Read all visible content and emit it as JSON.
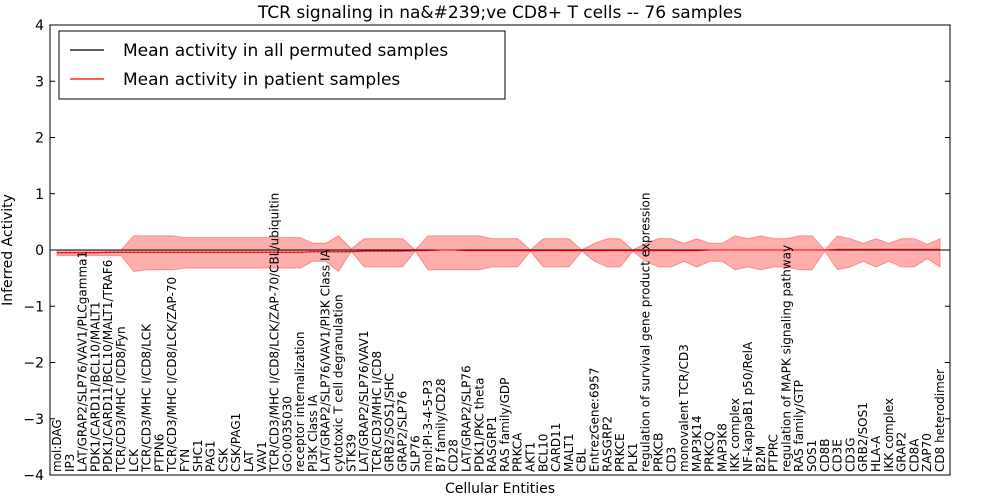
{
  "chart_data": {
    "type": "line",
    "title": "TCR signaling in na&#239;ve CD8+ T cells -- 76 samples",
    "xlabel": "Cellular Entities",
    "ylabel": "Inferred Activity",
    "ylim": [
      -4,
      4
    ],
    "yticks": [
      -4,
      -3,
      -2,
      -1,
      0,
      1,
      2,
      3,
      4
    ],
    "ytick_labels": [
      "−4",
      "−3",
      "−2",
      "−1",
      "0",
      "1",
      "2",
      "3",
      "4"
    ],
    "legend": {
      "position": "top-left",
      "entries": [
        {
          "label": "Mean activity in all permuted samples",
          "color": "#000000"
        },
        {
          "label": "Mean activity in patient samples",
          "color": "#ff0000"
        }
      ]
    },
    "band_color": "#ff6b6b",
    "entities": [
      "mol:DAG",
      "IP3",
      "LAT/GRAP2/SLP76/VAV1/PLCgamma1",
      "PDK1/CARD11/BCL10/MALT1",
      "PDK1/CARD11/BCL10/MALT1/TRAF6",
      "TCR/CD3/MHC I/CD8/Fyn",
      "LCK",
      "TCR/CD3/MHC I/CD8/LCK",
      "PTPN6",
      "TCR/CD3/MHC I/CD8/LCK/ZAP-70",
      "FYN",
      "SHC1",
      "PAG1",
      "CSK",
      "CSK/PAG1",
      "LAT",
      "VAV1",
      "TCR/CD3/MHC I/CD8/LCK/ZAP-70/CBL/ubiquitin",
      "GO:0035030",
      "receptor internalization",
      "PI3K Class IA",
      "LAT/GRAP2/SLP76/VAV1/PI3K Class IA",
      "cytotoxic T cell degranulation",
      "STK39",
      "LAT/GRAP2/SLP76/VAV1",
      "TCR/CD3/MHC I/CD8",
      "GRB2/SOS1/SHC",
      "GRAP2/SLP76",
      "SLP76",
      "mol:PI-3-4-5-P3",
      "B7 family/CD28",
      "CD28",
      "LAT/GRAP2/SLP76",
      "PDK1/PKC theta",
      "RASGRP1",
      "RAS family/GDP",
      "PRKCA",
      "AKT1",
      "BCL10",
      "CARD11",
      "MALT1",
      "CBL",
      "EntrezGene:6957",
      "RASGRP2",
      "PRKCE",
      "PLK1",
      "regulation of survival gene product expression",
      "PRKCB",
      "CD3",
      "monovalent TCR/CD3",
      "MAP3K14",
      "PRKCQ",
      "MAP3K8",
      "IKK complex",
      "NF-kappaB1 p50/RelA",
      "B2M",
      "PTPRC",
      "regulation of MAPK signaling pathway",
      "RAS family/GTP",
      "SOS1",
      "CD8B",
      "CD3E",
      "CD3G",
      "GRB2/SOS1",
      "HLA-A",
      "IKK complex",
      "GRAP2",
      "CD8A",
      "ZAP70",
      "CD8 heterodimer"
    ],
    "series": [
      {
        "name": "Mean activity in all permuted samples",
        "color": "#000000",
        "values": [
          -0.05,
          -0.05,
          -0.05,
          -0.05,
          -0.04,
          -0.04,
          -0.04,
          -0.04,
          -0.04,
          -0.04,
          -0.04,
          -0.04,
          -0.04,
          -0.04,
          -0.04,
          -0.04,
          -0.04,
          -0.04,
          -0.04,
          -0.04,
          -0.03,
          -0.03,
          -0.03,
          -0.03,
          -0.02,
          -0.02,
          -0.02,
          -0.02,
          -0.01,
          -0.01,
          0.0,
          0.0,
          -0.01,
          -0.01,
          -0.01,
          -0.01,
          -0.01,
          -0.01,
          -0.01,
          -0.01,
          -0.01,
          -0.01,
          -0.01,
          -0.01,
          -0.01,
          -0.01,
          -0.01,
          -0.01,
          -0.01,
          -0.01,
          -0.01,
          0.0,
          0.0,
          0.0,
          0.0,
          0.0,
          0.0,
          0.0,
          0.0,
          0.0,
          0.0,
          0.01,
          0.01,
          0.01,
          0.01,
          0.01,
          0.01,
          0.01,
          0.01,
          0.01
        ]
      },
      {
        "name": "Mean activity in patient samples",
        "color": "#ff0000",
        "values": [
          -0.05,
          -0.05,
          -0.05,
          -0.05,
          -0.04,
          -0.04,
          -0.04,
          -0.04,
          -0.04,
          -0.04,
          -0.04,
          -0.04,
          -0.04,
          -0.04,
          -0.04,
          -0.04,
          -0.04,
          -0.04,
          -0.04,
          -0.04,
          -0.03,
          -0.03,
          -0.03,
          -0.03,
          -0.02,
          -0.02,
          -0.02,
          -0.02,
          -0.01,
          -0.01,
          0.0,
          0.0,
          -0.01,
          -0.01,
          -0.01,
          -0.01,
          -0.01,
          -0.01,
          -0.01,
          -0.01,
          -0.01,
          -0.01,
          -0.01,
          -0.01,
          -0.01,
          -0.01,
          -0.01,
          -0.01,
          -0.01,
          -0.01,
          -0.01,
          0.0,
          0.0,
          0.0,
          0.0,
          0.0,
          0.0,
          0.0,
          0.0,
          0.0,
          0.0,
          0.01,
          0.01,
          0.01,
          0.01,
          0.01,
          0.01,
          0.01,
          0.01,
          0.01
        ]
      }
    ],
    "band_upper": [
      0.0,
      0.0,
      0.0,
      0.0,
      0.0,
      0.0,
      0.25,
      0.25,
      0.25,
      0.25,
      0.22,
      0.22,
      0.22,
      0.22,
      0.22,
      0.22,
      0.22,
      0.22,
      0.22,
      0.22,
      0.12,
      0.12,
      0.25,
      0.02,
      0.2,
      0.2,
      0.2,
      0.2,
      0.0,
      0.25,
      0.25,
      0.25,
      0.25,
      0.25,
      0.2,
      0.2,
      0.2,
      0.0,
      0.2,
      0.2,
      0.2,
      0.0,
      0.12,
      0.2,
      0.2,
      0.0,
      0.12,
      0.2,
      0.2,
      0.12,
      0.2,
      0.12,
      0.12,
      0.25,
      0.2,
      0.25,
      0.2,
      0.2,
      0.25,
      0.25,
      0.0,
      0.25,
      0.2,
      0.12,
      0.2,
      0.12,
      0.2,
      0.2,
      0.1,
      0.2
    ],
    "band_lower": [
      -0.1,
      -0.1,
      -0.1,
      -0.1,
      -0.1,
      -0.1,
      -0.38,
      -0.35,
      -0.35,
      -0.35,
      -0.32,
      -0.32,
      -0.32,
      -0.32,
      -0.32,
      -0.32,
      -0.32,
      -0.32,
      -0.32,
      -0.32,
      -0.2,
      -0.2,
      -0.38,
      -0.02,
      -0.3,
      -0.3,
      -0.3,
      -0.3,
      -0.02,
      -0.35,
      -0.35,
      -0.35,
      -0.35,
      -0.35,
      -0.3,
      -0.3,
      -0.3,
      -0.02,
      -0.3,
      -0.3,
      -0.3,
      -0.02,
      -0.2,
      -0.3,
      -0.3,
      -0.02,
      -0.2,
      -0.3,
      -0.3,
      -0.2,
      -0.3,
      -0.2,
      -0.2,
      -0.35,
      -0.3,
      -0.35,
      -0.3,
      -0.3,
      -0.35,
      -0.35,
      -0.02,
      -0.35,
      -0.3,
      -0.2,
      -0.3,
      -0.2,
      -0.3,
      -0.3,
      -0.15,
      -0.3
    ]
  }
}
